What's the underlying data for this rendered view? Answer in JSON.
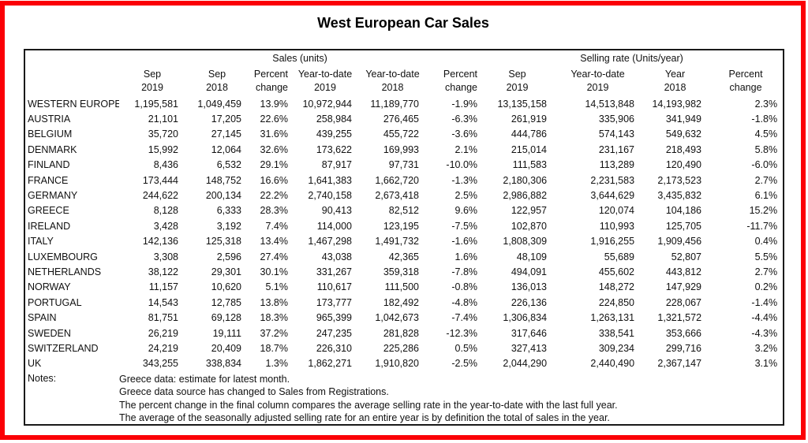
{
  "title": "West European Car Sales",
  "colors": {
    "frame_red": "#fb0006",
    "table_border": "#1a1a1a",
    "text": "#111111",
    "background": "#ffffff"
  },
  "table": {
    "group_headers": {
      "sales": "Sales (units)",
      "selling_rate": "Selling rate (Units/year)"
    },
    "columns": [
      {
        "line1": "Sep",
        "line2": "2019"
      },
      {
        "line1": "Sep",
        "line2": "2018"
      },
      {
        "line1": "Percent",
        "line2": "change"
      },
      {
        "line1": "Year-to-date",
        "line2": "2019"
      },
      {
        "line1": "Year-to-date",
        "line2": "2018"
      },
      {
        "line1": "Percent",
        "line2": "change"
      },
      {
        "line1": "Sep",
        "line2": "2019"
      },
      {
        "line1": "Year-to-date",
        "line2": "2019"
      },
      {
        "line1": "Year",
        "line2": "2018"
      },
      {
        "line1": "Percent",
        "line2": "change"
      }
    ],
    "rows": [
      {
        "country": "WESTERN EUROPE",
        "values": [
          "1,195,581",
          "1,049,459",
          "13.9%",
          "10,972,944",
          "11,189,770",
          "-1.9%",
          "13,135,158",
          "14,513,848",
          "14,193,982",
          "2.3%"
        ]
      },
      {
        "country": "AUSTRIA",
        "values": [
          "21,101",
          "17,205",
          "22.6%",
          "258,984",
          "276,465",
          "-6.3%",
          "261,919",
          "335,906",
          "341,949",
          "-1.8%"
        ]
      },
      {
        "country": "BELGIUM",
        "values": [
          "35,720",
          "27,145",
          "31.6%",
          "439,255",
          "455,722",
          "-3.6%",
          "444,786",
          "574,143",
          "549,632",
          "4.5%"
        ]
      },
      {
        "country": "DENMARK",
        "values": [
          "15,992",
          "12,064",
          "32.6%",
          "173,622",
          "169,993",
          "2.1%",
          "215,014",
          "231,167",
          "218,493",
          "5.8%"
        ]
      },
      {
        "country": "FINLAND",
        "values": [
          "8,436",
          "6,532",
          "29.1%",
          "87,917",
          "97,731",
          "-10.0%",
          "111,583",
          "113,289",
          "120,490",
          "-6.0%"
        ]
      },
      {
        "country": "FRANCE",
        "values": [
          "173,444",
          "148,752",
          "16.6%",
          "1,641,383",
          "1,662,720",
          "-1.3%",
          "2,180,306",
          "2,231,583",
          "2,173,523",
          "2.7%"
        ]
      },
      {
        "country": "GERMANY",
        "values": [
          "244,622",
          "200,134",
          "22.2%",
          "2,740,158",
          "2,673,418",
          "2.5%",
          "2,986,882",
          "3,644,629",
          "3,435,832",
          "6.1%"
        ]
      },
      {
        "country": "GREECE",
        "values": [
          "8,128",
          "6,333",
          "28.3%",
          "90,413",
          "82,512",
          "9.6%",
          "122,957",
          "120,074",
          "104,186",
          "15.2%"
        ]
      },
      {
        "country": "IRELAND",
        "values": [
          "3,428",
          "3,192",
          "7.4%",
          "114,000",
          "123,195",
          "-7.5%",
          "102,870",
          "110,993",
          "125,705",
          "-11.7%"
        ]
      },
      {
        "country": "ITALY",
        "values": [
          "142,136",
          "125,318",
          "13.4%",
          "1,467,298",
          "1,491,732",
          "-1.6%",
          "1,808,309",
          "1,916,255",
          "1,909,456",
          "0.4%"
        ]
      },
      {
        "country": "LUXEMBOURG",
        "values": [
          "3,308",
          "2,596",
          "27.4%",
          "43,038",
          "42,365",
          "1.6%",
          "48,109",
          "55,689",
          "52,807",
          "5.5%"
        ]
      },
      {
        "country": "NETHERLANDS",
        "values": [
          "38,122",
          "29,301",
          "30.1%",
          "331,267",
          "359,318",
          "-7.8%",
          "494,091",
          "455,602",
          "443,812",
          "2.7%"
        ]
      },
      {
        "country": "NORWAY",
        "values": [
          "11,157",
          "10,620",
          "5.1%",
          "110,617",
          "111,500",
          "-0.8%",
          "136,013",
          "148,272",
          "147,929",
          "0.2%"
        ]
      },
      {
        "country": "PORTUGAL",
        "values": [
          "14,543",
          "12,785",
          "13.8%",
          "173,777",
          "182,492",
          "-4.8%",
          "226,136",
          "224,850",
          "228,067",
          "-1.4%"
        ]
      },
      {
        "country": "SPAIN",
        "values": [
          "81,751",
          "69,128",
          "18.3%",
          "965,399",
          "1,042,673",
          "-7.4%",
          "1,306,834",
          "1,263,131",
          "1,321,572",
          "-4.4%"
        ]
      },
      {
        "country": "SWEDEN",
        "values": [
          "26,219",
          "19,111",
          "37.2%",
          "247,235",
          "281,828",
          "-12.3%",
          "317,646",
          "338,541",
          "353,666",
          "-4.3%"
        ]
      },
      {
        "country": "SWITZERLAND",
        "values": [
          "24,219",
          "20,409",
          "18.7%",
          "226,310",
          "225,286",
          "0.5%",
          "327,413",
          "309,234",
          "299,716",
          "3.2%"
        ]
      },
      {
        "country": "UK",
        "values": [
          "343,255",
          "338,834",
          "1.3%",
          "1,862,271",
          "1,910,820",
          "-2.5%",
          "2,044,290",
          "2,440,490",
          "2,367,147",
          "3.1%"
        ]
      }
    ]
  },
  "notes": {
    "label": "Notes:",
    "lines": [
      "Greece data: estimate for latest month.",
      "Greece data source has changed to Sales from Registrations.",
      "The percent change in the final column compares the average selling rate in the year-to-date with the last full year.",
      "The average of the seasonally adjusted selling rate for an entire year is by definition the total of sales in the year."
    ]
  }
}
